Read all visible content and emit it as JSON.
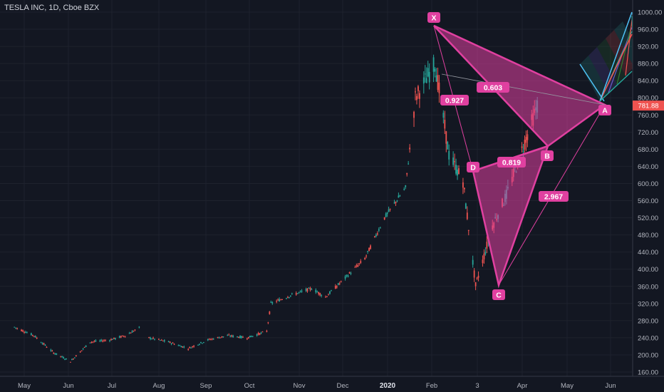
{
  "header": {
    "title": "TESLA INC, 1D, Cboe BZX"
  },
  "colors": {
    "background": "#131722",
    "candle_up": "#26a69a",
    "candle_down": "#ef5350",
    "pattern": "#e040a0",
    "price_badge": "#ef5350",
    "axis_text": "#b2b5be"
  },
  "price_axis": {
    "ticks": [
      "1000.00",
      "960.00",
      "920.00",
      "880.00",
      "840.00",
      "800.00",
      "760.00",
      "720.00",
      "680.00",
      "640.00",
      "600.00",
      "560.00",
      "520.00",
      "480.00",
      "440.00",
      "400.00",
      "360.00",
      "320.00",
      "280.00",
      "240.00",
      "200.00",
      "160.00"
    ],
    "current_price": "781.88"
  },
  "time_axis": {
    "ticks": [
      {
        "label": "May"
      },
      {
        "label": "Jun"
      },
      {
        "label": "Jul"
      },
      {
        "label": "Aug"
      },
      {
        "label": "Sep"
      },
      {
        "label": "Oct"
      },
      {
        "label": "Nov"
      },
      {
        "label": "Dec"
      },
      {
        "label": "2020",
        "bold": true
      },
      {
        "label": "Feb"
      },
      {
        "label": "3"
      },
      {
        "label": "Apr"
      },
      {
        "label": "May"
      },
      {
        "label": "Jun"
      }
    ]
  },
  "pattern": {
    "points": [
      {
        "label": "X",
        "price": 968
      },
      {
        "label": "A",
        "price": 790
      },
      {
        "label": "B",
        "price": 683
      },
      {
        "label": "C",
        "price": 350
      },
      {
        "label": "D",
        "price": 625
      }
    ],
    "ratios": [
      "0.603",
      "0.927",
      "0.819",
      "2.967"
    ]
  },
  "chart_data": {
    "type": "candlestick",
    "title": "TESLA INC, 1D, Cboe BZX",
    "ylim": [
      150,
      1010
    ],
    "x_range": [
      "2019-04",
      "2020-06"
    ],
    "last_price": 781.88,
    "trend": [
      {
        "date": "2019-04-24",
        "price": 265
      },
      {
        "date": "2019-05-08",
        "price": 245
      },
      {
        "date": "2019-05-22",
        "price": 205
      },
      {
        "date": "2019-06-03",
        "price": 185
      },
      {
        "date": "2019-06-17",
        "price": 230
      },
      {
        "date": "2019-07-01",
        "price": 235
      },
      {
        "date": "2019-07-12",
        "price": 245
      },
      {
        "date": "2019-07-22",
        "price": 263
      },
      {
        "date": "2019-07-29",
        "price": 240
      },
      {
        "date": "2019-08-12",
        "price": 230
      },
      {
        "date": "2019-08-26",
        "price": 215
      },
      {
        "date": "2019-09-09",
        "price": 235
      },
      {
        "date": "2019-09-23",
        "price": 245
      },
      {
        "date": "2019-10-07",
        "price": 240
      },
      {
        "date": "2019-10-21",
        "price": 255
      },
      {
        "date": "2019-10-24",
        "price": 320
      },
      {
        "date": "2019-11-08",
        "price": 340
      },
      {
        "date": "2019-11-22",
        "price": 355
      },
      {
        "date": "2019-12-02",
        "price": 335
      },
      {
        "date": "2019-12-16",
        "price": 380
      },
      {
        "date": "2019-12-30",
        "price": 425
      },
      {
        "date": "2020-01-13",
        "price": 520
      },
      {
        "date": "2020-01-28",
        "price": 590
      },
      {
        "date": "2020-02-04",
        "price": 800
      },
      {
        "date": "2020-02-18",
        "price": 880
      },
      {
        "date": "2020-02-28",
        "price": 667
      },
      {
        "date": "2020-03-09",
        "price": 605
      },
      {
        "date": "2020-03-18",
        "price": 361
      },
      {
        "date": "2020-03-30",
        "price": 502
      },
      {
        "date": "2020-04-09",
        "price": 573
      },
      {
        "date": "2020-04-23",
        "price": 706
      },
      {
        "date": "2020-05-01",
        "price": 781.88
      }
    ]
  }
}
